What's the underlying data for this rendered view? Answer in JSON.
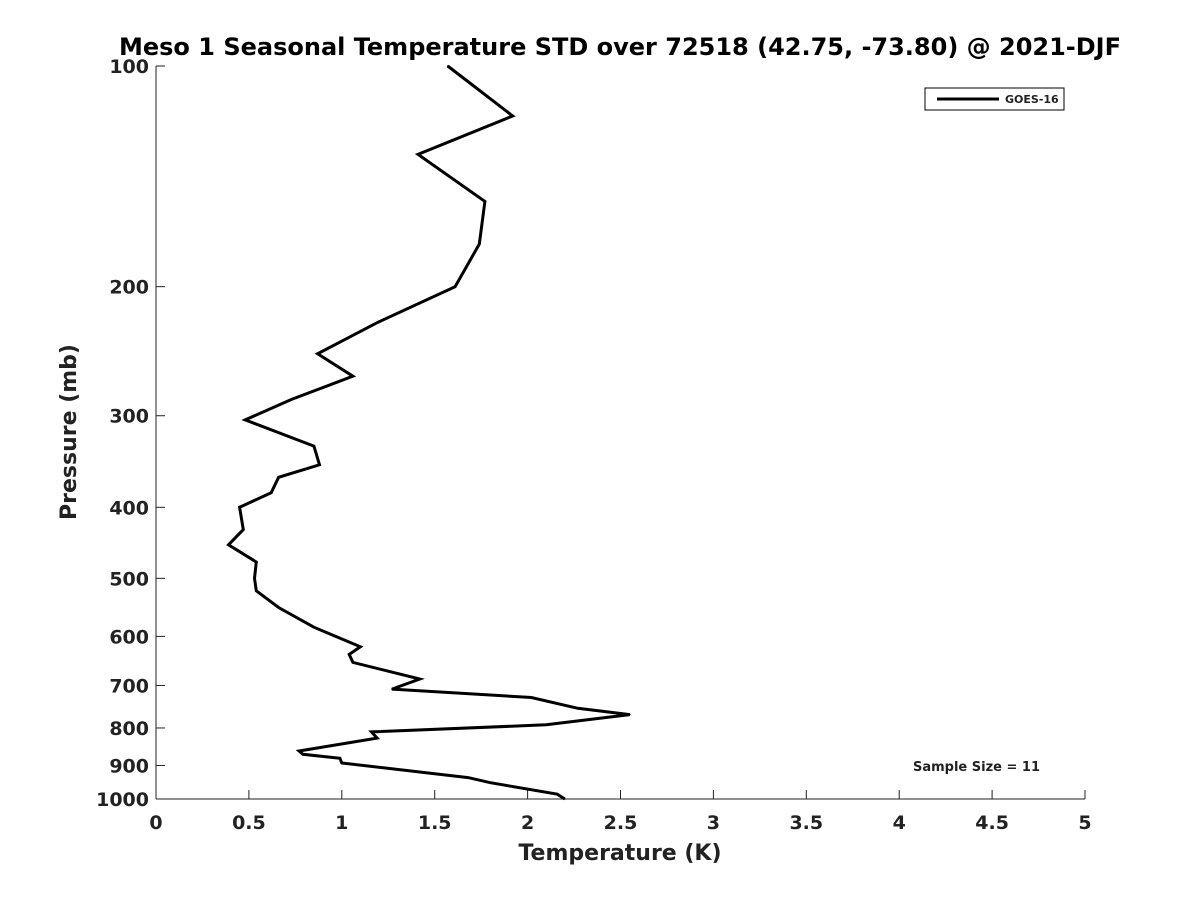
{
  "chart_data": {
    "type": "line",
    "title": "Meso 1 Seasonal Temperature STD over 72518 (42.75, -73.80) @ 2021-DJF",
    "xlabel": "Temperature (K)",
    "ylabel": "Pressure (mb)",
    "xlim": [
      0,
      5
    ],
    "ylim": [
      100,
      1000
    ],
    "y_scale": "log",
    "y_reversed": true,
    "grid": false,
    "x_ticks": [
      0,
      0.5,
      1,
      1.5,
      2,
      2.5,
      3,
      3.5,
      4,
      4.5,
      5
    ],
    "x_tick_labels": [
      "0",
      "0.5",
      "1",
      "1.5",
      "2",
      "2.5",
      "3",
      "3.5",
      "4",
      "4.5",
      "5"
    ],
    "y_ticks": [
      100,
      200,
      300,
      400,
      500,
      600,
      700,
      800,
      900,
      1000
    ],
    "y_tick_labels": [
      "100",
      "200",
      "300",
      "400",
      "500",
      "600",
      "700",
      "800",
      "900",
      "1000"
    ],
    "legend_position": "top-right",
    "series": [
      {
        "name": "GOES-16",
        "color": "#000000",
        "x": [
          1.57,
          1.92,
          1.41,
          1.77,
          1.74,
          1.61,
          1.19,
          0.87,
          1.06,
          0.73,
          0.48,
          0.85,
          0.88,
          0.66,
          0.62,
          0.45,
          0.47,
          0.39,
          0.54,
          0.53,
          0.54,
          0.66,
          0.85,
          1.1,
          1.04,
          1.06,
          1.42,
          1.27,
          2.02,
          2.27,
          2.55,
          2.1,
          1.16,
          1.19,
          0.77,
          0.79,
          0.99,
          1.0,
          1.68,
          1.8,
          2.16,
          2.2
        ],
        "y": [
          100,
          117,
          132,
          153,
          175,
          200,
          224,
          247,
          265,
          285,
          304,
          330,
          350,
          364,
          382,
          400,
          429,
          450,
          475,
          500,
          520,
          548,
          583,
          620,
          635,
          651,
          686,
          708,
          727,
          752,
          767,
          792,
          810,
          826,
          860,
          869,
          880,
          893,
          935,
          950,
          985,
          1000
        ]
      }
    ],
    "annotations": [
      {
        "text": "Sample Size = 11",
        "position": "bottom-right"
      }
    ]
  }
}
